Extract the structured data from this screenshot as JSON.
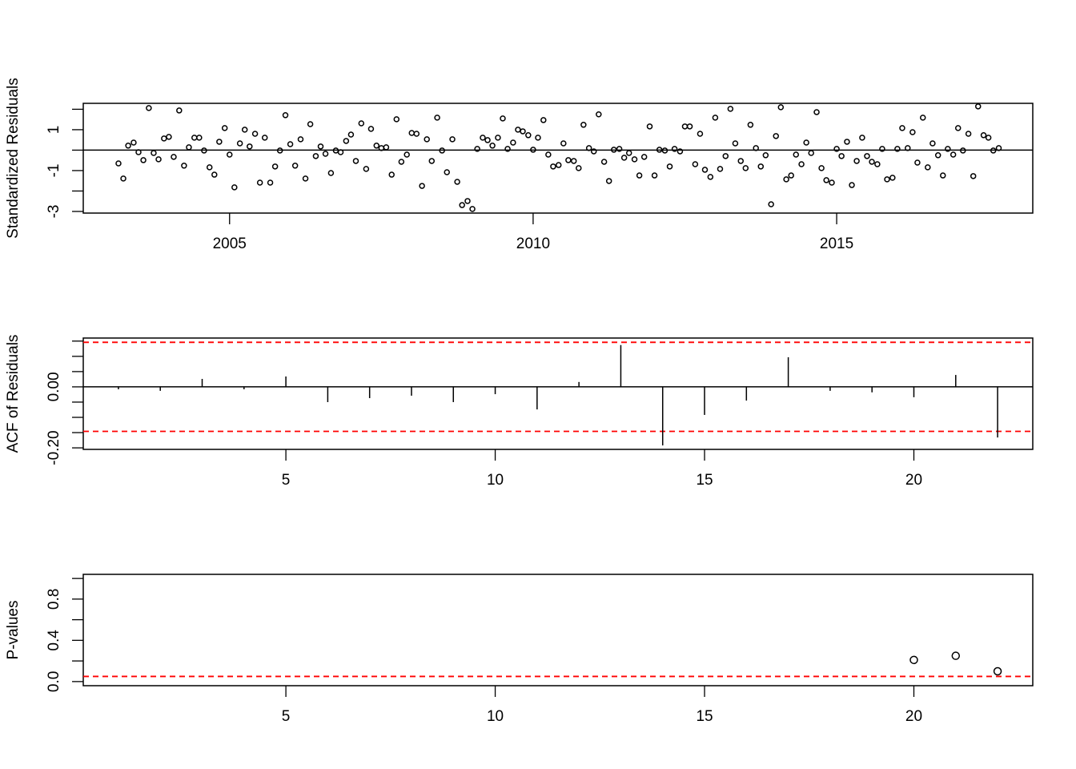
{
  "chart_data": [
    {
      "type": "scatter",
      "ylabel": "Standardized Residuals",
      "x": [
        2003.17,
        2003.25,
        2003.33,
        2003.42,
        2003.5,
        2003.58,
        2003.67,
        2003.75,
        2003.83,
        2003.92,
        2004.0,
        2004.08,
        2004.17,
        2004.25,
        2004.33,
        2004.42,
        2004.5,
        2004.58,
        2004.67,
        2004.75,
        2004.83,
        2004.92,
        2005.0,
        2005.08,
        2005.17,
        2005.25,
        2005.33,
        2005.42,
        2005.5,
        2005.58,
        2005.67,
        2005.75,
        2005.83,
        2005.92,
        2006.0,
        2006.08,
        2006.17,
        2006.25,
        2006.33,
        2006.42,
        2006.5,
        2006.58,
        2006.67,
        2006.75,
        2006.83,
        2006.92,
        2007.0,
        2007.08,
        2007.17,
        2007.25,
        2007.33,
        2007.42,
        2007.5,
        2007.58,
        2007.67,
        2007.75,
        2007.83,
        2007.92,
        2008.0,
        2008.08,
        2008.17,
        2008.25,
        2008.33,
        2008.42,
        2008.5,
        2008.58,
        2008.67,
        2008.75,
        2008.83,
        2008.92,
        2009.0,
        2009.08,
        2009.17,
        2009.25,
        2009.33,
        2009.42,
        2009.5,
        2009.58,
        2009.67,
        2009.75,
        2009.83,
        2009.92,
        2010.0,
        2010.08,
        2010.17,
        2010.25,
        2010.33,
        2010.42,
        2010.5,
        2010.58,
        2010.67,
        2010.75,
        2010.83,
        2010.92,
        2011.0,
        2011.08,
        2011.17,
        2011.25,
        2011.33,
        2011.42,
        2011.5,
        2011.58,
        2011.67,
        2011.75,
        2011.83,
        2011.92,
        2012.0,
        2012.08,
        2012.17,
        2012.25,
        2012.33,
        2012.42,
        2012.5,
        2012.58,
        2012.67,
        2012.75,
        2012.83,
        2012.92,
        2013.0,
        2013.08,
        2013.17,
        2013.25,
        2013.33,
        2013.42,
        2013.5,
        2013.58,
        2013.67,
        2013.75,
        2013.83,
        2013.92,
        2014.0,
        2014.08,
        2014.17,
        2014.25,
        2014.33,
        2014.42,
        2014.5,
        2014.58,
        2014.67,
        2014.75,
        2014.83,
        2014.92,
        2015.0,
        2015.08,
        2015.17,
        2015.25,
        2015.33,
        2015.42,
        2015.5,
        2015.58,
        2015.67,
        2015.75,
        2015.83,
        2015.92,
        2016.0,
        2016.08,
        2016.17,
        2016.25,
        2016.33,
        2016.42,
        2016.5,
        2016.58,
        2016.67,
        2016.75,
        2016.83,
        2016.92,
        2017.0,
        2017.08,
        2017.17,
        2017.25,
        2017.33,
        2017.42,
        2017.5,
        2017.58,
        2017.67
      ],
      "values": [
        -0.65,
        -1.39,
        0.22,
        0.37,
        -0.1,
        -0.49,
        2.06,
        -0.14,
        -0.45,
        0.57,
        0.65,
        -0.33,
        1.94,
        -0.76,
        0.14,
        0.61,
        0.61,
        -0.02,
        -0.84,
        -1.2,
        0.41,
        1.08,
        -0.22,
        -1.82,
        0.33,
        1.0,
        0.18,
        0.8,
        -1.59,
        0.61,
        -1.59,
        -0.8,
        -0.02,
        1.71,
        0.29,
        -0.76,
        0.53,
        -1.39,
        1.27,
        -0.29,
        0.18,
        -0.18,
        -1.12,
        -0.02,
        -0.1,
        0.45,
        0.76,
        -0.53,
        1.31,
        -0.92,
        1.04,
        0.22,
        0.1,
        0.14,
        -1.2,
        1.51,
        -0.57,
        -0.22,
        0.84,
        0.8,
        -1.75,
        0.53,
        -0.53,
        1.59,
        -0.02,
        -1.08,
        0.53,
        -1.55,
        -2.69,
        -2.49,
        -2.88,
        0.06,
        0.61,
        0.49,
        0.22,
        0.61,
        1.55,
        0.06,
        0.37,
        1.0,
        0.92,
        0.73,
        0.02,
        0.61,
        1.47,
        -0.22,
        -0.8,
        -0.73,
        0.33,
        -0.49,
        -0.53,
        -0.88,
        1.24,
        0.1,
        -0.06,
        1.75,
        -0.57,
        -1.51,
        0.02,
        0.06,
        -0.37,
        -0.14,
        -0.45,
        -1.24,
        -0.33,
        1.16,
        -1.24,
        0.02,
        -0.02,
        -0.8,
        0.06,
        -0.06,
        1.16,
        1.16,
        -0.69,
        0.8,
        -0.96,
        -1.31,
        1.59,
        -0.92,
        -0.29,
        2.02,
        0.33,
        -0.53,
        -0.88,
        1.24,
        0.1,
        -0.8,
        -0.25,
        -2.65,
        0.69,
        2.1,
        -1.43,
        -1.24,
        -0.22,
        -0.69,
        0.37,
        -0.14,
        1.86,
        -0.88,
        -1.47,
        -1.59,
        0.06,
        -0.29,
        0.41,
        -1.71,
        -0.53,
        0.61,
        -0.29,
        -0.57,
        -0.69,
        0.06,
        -1.43,
        -1.35,
        0.06,
        1.08,
        0.1,
        0.88,
        -0.61,
        1.59,
        -0.84,
        0.33,
        -0.25,
        -1.24,
        0.06,
        -0.22,
        1.08,
        -0.02,
        0.8,
        -1.27,
        2.14,
        0.73,
        0.61,
        -0.02,
        0.1
      ],
      "xlim": [
        2002.59,
        2018.23
      ],
      "xticks": [
        2005,
        2010,
        2015
      ],
      "ylim": [
        -3.08,
        2.29
      ],
      "yticks": [
        -3,
        -1,
        1
      ],
      "yminor": [
        -2,
        0,
        2
      ],
      "zero_line": true,
      "color": "#000000",
      "point_radius": 3
    },
    {
      "type": "stem",
      "ylabel": "ACF of Residuals",
      "x": [
        1,
        2,
        3,
        4,
        5,
        6,
        7,
        8,
        9,
        10,
        11,
        12,
        13,
        14,
        15,
        16,
        17,
        18,
        19,
        20,
        21,
        22
      ],
      "values": [
        -0.008,
        -0.013,
        0.026,
        -0.008,
        0.034,
        -0.05,
        -0.037,
        -0.029,
        -0.05,
        -0.024,
        -0.074,
        0.016,
        0.137,
        -0.192,
        -0.092,
        -0.045,
        0.097,
        -0.013,
        -0.018,
        -0.034,
        0.039,
        -0.166
      ],
      "xlim": [
        0.16,
        22.84
      ],
      "xticks": [
        5,
        10,
        15,
        20
      ],
      "ylim": [
        -0.205,
        0.16
      ],
      "yticks": [
        {
          "value": 0,
          "label": "0.00"
        },
        {
          "value": -0.2,
          "label": "-0.20"
        }
      ],
      "yminor": [
        0.15,
        0.1,
        0.05,
        -0.05,
        -0.1,
        -0.15
      ],
      "zero_line": true,
      "ref_lines": [
        0.146,
        -0.146
      ],
      "ref_color": "#ff0000",
      "color": "#000000"
    },
    {
      "type": "scatter",
      "ylabel": "P-values",
      "x": [
        20,
        21,
        22
      ],
      "values": [
        0.21,
        0.25,
        0.1
      ],
      "xlim": [
        0.16,
        22.84
      ],
      "xticks": [
        5,
        10,
        15,
        20
      ],
      "ylim": [
        -0.04,
        1.04
      ],
      "yticks": [
        {
          "value": 0,
          "label": "0.0"
        },
        0.4,
        0.8
      ],
      "yminor": [
        0.2,
        0.6,
        1.0
      ],
      "ref_lines": [
        0.05
      ],
      "ref_color": "#ff0000",
      "color": "#000000",
      "point_radius": 4.5
    }
  ]
}
